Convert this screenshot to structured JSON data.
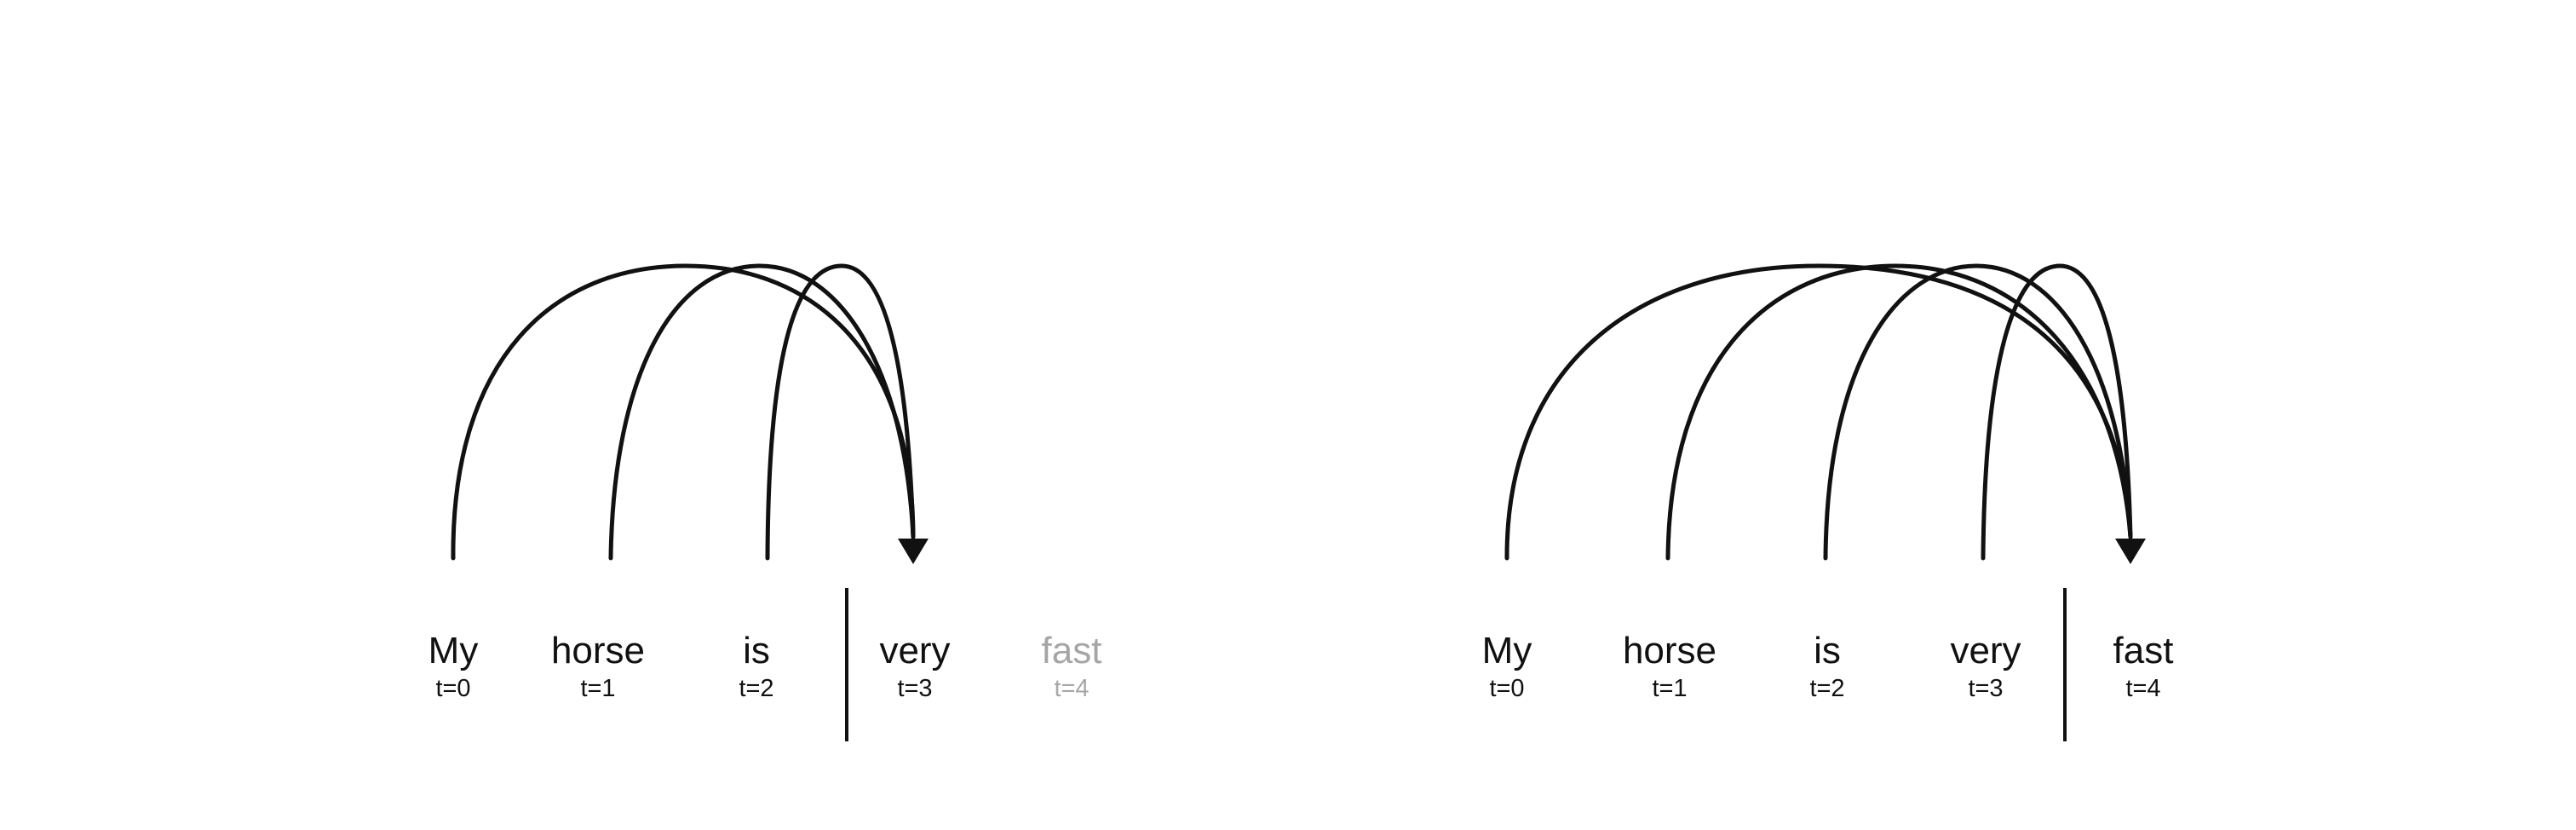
{
  "panels": [
    {
      "tokens": [
        {
          "word": "My",
          "time": "t=0",
          "future": false
        },
        {
          "word": "horse",
          "time": "t=1",
          "future": false
        },
        {
          "word": "is",
          "time": "t=2",
          "future": false
        },
        {
          "word": "very",
          "time": "t=3",
          "future": false
        },
        {
          "word": "fast",
          "time": "t=4",
          "future": true
        }
      ],
      "target_index": 3,
      "divider_after_index": 2
    },
    {
      "tokens": [
        {
          "word": "My",
          "time": "t=0",
          "future": false
        },
        {
          "word": "horse",
          "time": "t=1",
          "future": false
        },
        {
          "word": "is",
          "time": "t=2",
          "future": false
        },
        {
          "word": "very",
          "time": "t=3",
          "future": false
        },
        {
          "word": "fast",
          "time": "t=4",
          "future": false
        }
      ],
      "target_index": 4,
      "divider_after_index": 3
    }
  ],
  "colors": {
    "ink": "#111111",
    "future_token": "#a6a6a6"
  }
}
